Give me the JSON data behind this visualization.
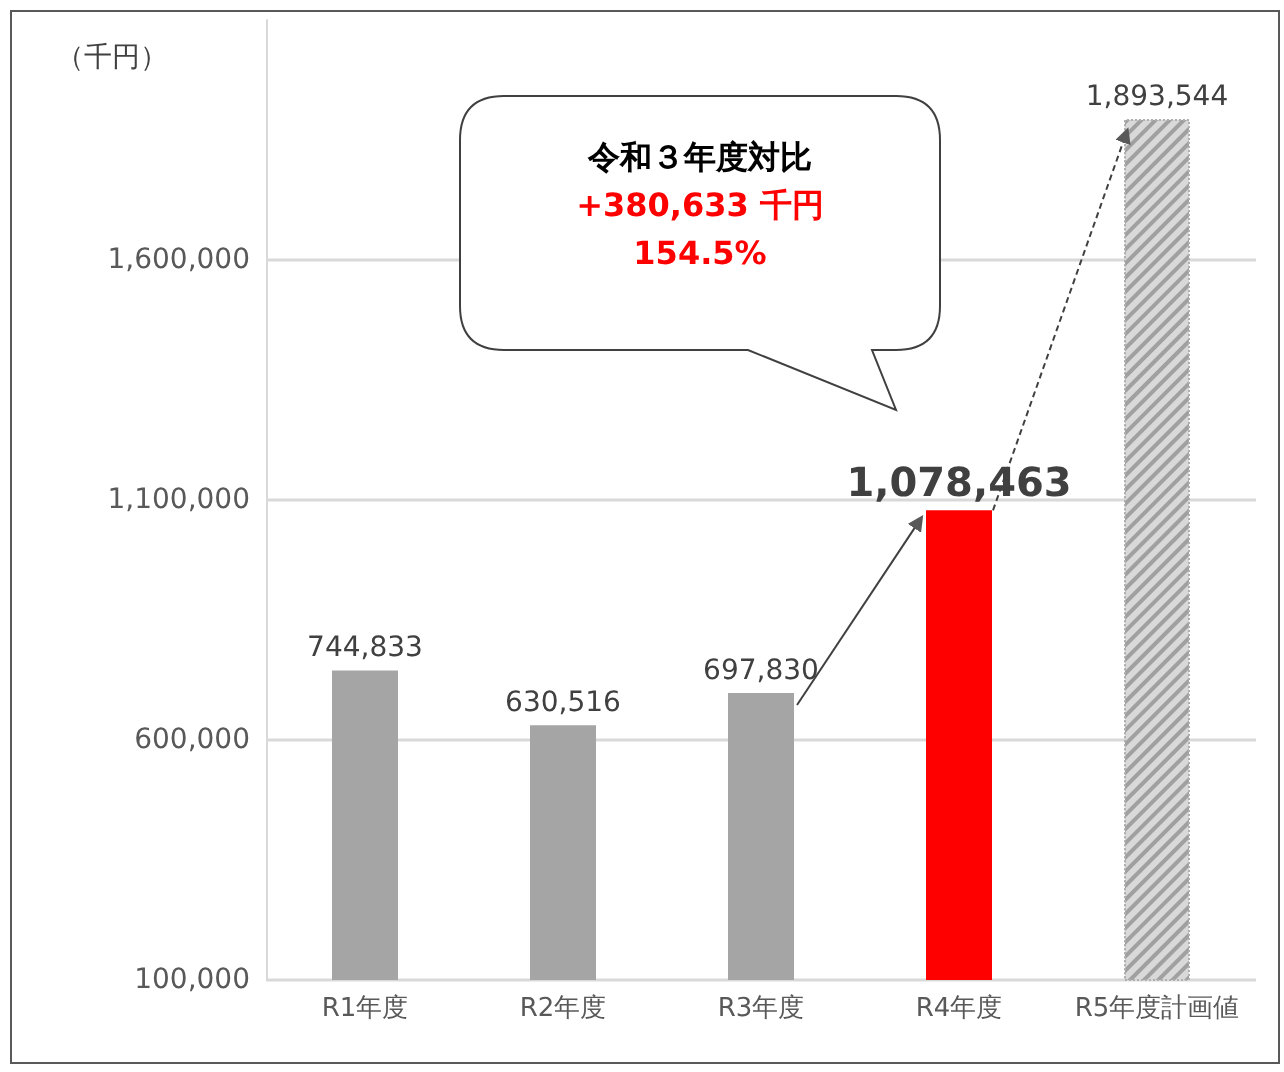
{
  "chart_data": {
    "type": "bar",
    "ylabel": "（千円）",
    "categories": [
      "R1年度",
      "R2年度",
      "R3年度",
      "R4年度",
      "R5年度計画値"
    ],
    "values": [
      744833,
      630516,
      697830,
      1078463,
      1893544
    ],
    "colors": [
      "#a5a5a5",
      "#a5a5a5",
      "#a5a5a5",
      "#ff0000",
      "#d9d9d9"
    ],
    "value_labels": [
      "744,833",
      "630,516",
      "697,830",
      "1,078,463",
      "1,893,544"
    ],
    "ylim": [
      100000,
      2100000
    ],
    "yticks": [
      {
        "value": 100000,
        "label": "100,000"
      },
      {
        "value": 600000,
        "label": "600,000"
      },
      {
        "value": 1100000,
        "label": "1,100,000"
      },
      {
        "value": 1600000,
        "label": "1,600,000"
      }
    ],
    "grid": "y",
    "annotations": [
      "令和３年度対比",
      "+380,633 千円",
      "154.5%"
    ]
  }
}
